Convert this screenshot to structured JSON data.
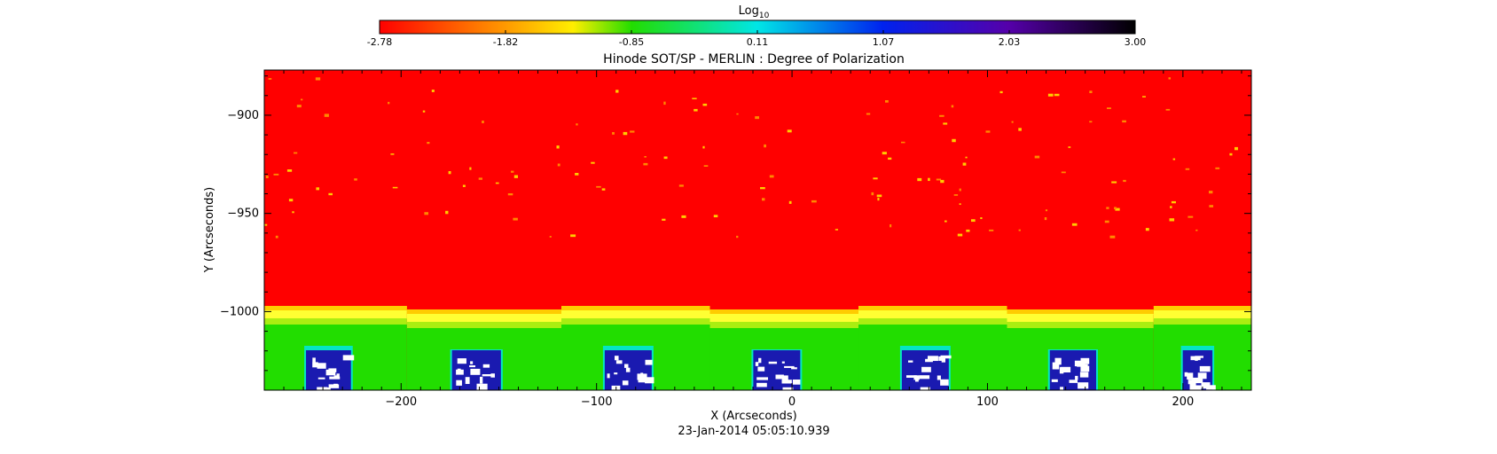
{
  "chart_data": {
    "type": "heatmap",
    "title": "Hinode SOT/SP - MERLIN : Degree of Polarization",
    "xlabel": "X (Arcseconds)",
    "ylabel": "Y (Arcseconds)",
    "date_label": "23-Jan-2014 05:05:10.939",
    "colorbar": {
      "title_base": "Log",
      "title_sub": "10",
      "range": [
        -2.78,
        3.0
      ],
      "tick_labels": [
        "-2.78",
        "-1.82",
        "-0.85",
        "0.11",
        "1.07",
        "2.03",
        "3.00"
      ],
      "stops": [
        {
          "value": -2.78,
          "color": "#ff0000"
        },
        {
          "value": -1.82,
          "color": "#ff9900"
        },
        {
          "value": -1.3,
          "color": "#ffee00"
        },
        {
          "value": -0.85,
          "color": "#22dd00"
        },
        {
          "value": 0.11,
          "color": "#00e6e6"
        },
        {
          "value": 1.07,
          "color": "#0022ee"
        },
        {
          "value": 2.03,
          "color": "#5500aa"
        },
        {
          "value": 3.0,
          "color": "#000000"
        }
      ]
    },
    "xlim": [
      -270,
      235
    ],
    "ylim": [
      -1040,
      -877
    ],
    "x_ticks": [
      {
        "value": -200,
        "label": "−200"
      },
      {
        "value": -100,
        "label": "−100"
      },
      {
        "value": 0,
        "label": "0"
      },
      {
        "value": 100,
        "label": "100"
      },
      {
        "value": 200,
        "label": "200"
      }
    ],
    "y_ticks": [
      {
        "value": -900,
        "label": "−900"
      },
      {
        "value": -950,
        "label": "−950"
      },
      {
        "value": -1000,
        "label": "−1000"
      }
    ],
    "limb_y": -998,
    "field_value": -2.78,
    "colors": {
      "field": "#ff0000",
      "limb": "#ffff33",
      "off_limb": "#22dd00",
      "faint": "#00e6e6",
      "dark": "#1a1ab0",
      "saturated": "#ffffff"
    }
  }
}
